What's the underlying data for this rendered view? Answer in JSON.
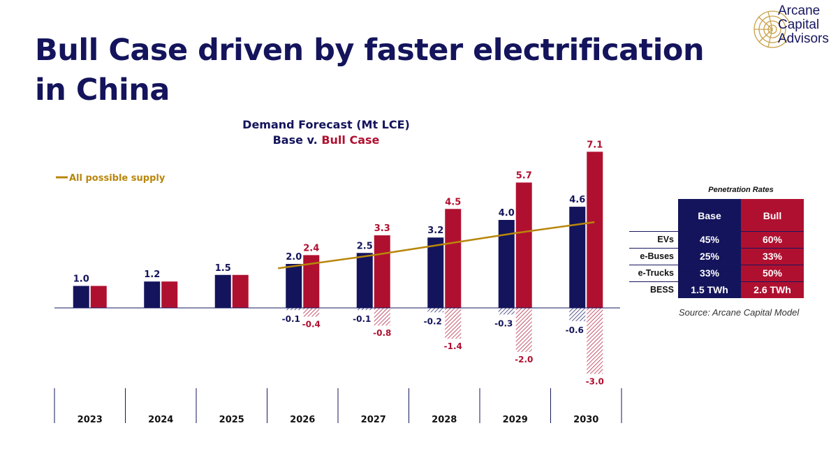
{
  "slide": {
    "title": "Bull Case driven by faster electrification in China",
    "logo": {
      "line1": "Arcane",
      "line2": "Capital",
      "line3": "Advisors",
      "icon": "nautilus-shell-icon"
    },
    "source": "Source: Arcane Capital Model"
  },
  "colors": {
    "base": "#14145c",
    "bull": "#b01030",
    "supply": "#b8860b",
    "text": "#16165e"
  },
  "chart_data": {
    "type": "bar",
    "title": "Demand Forecast (Mt LCE)",
    "subtitle_parts": [
      "Base v. ",
      "Bull Case"
    ],
    "categories": [
      "2023",
      "2024",
      "2025",
      "2026",
      "2027",
      "2028",
      "2029",
      "2030"
    ],
    "series": [
      {
        "name": "Base",
        "values": [
          1.0,
          1.2,
          1.5,
          2.0,
          2.5,
          3.2,
          4.0,
          4.6
        ],
        "labels": [
          "1.0",
          "1.2",
          "1.5",
          "2.0",
          "2.5",
          "3.2",
          "4.0",
          "4.6"
        ]
      },
      {
        "name": "Bull Case",
        "values": [
          1.0,
          1.2,
          1.5,
          2.4,
          3.3,
          4.5,
          5.7,
          7.1
        ],
        "labels": [
          "",
          "",
          "",
          "2.4",
          "3.3",
          "4.5",
          "5.7",
          "7.1"
        ]
      }
    ],
    "negative_series": [
      {
        "series": "Base",
        "values": [
          0,
          0,
          0,
          -0.1,
          -0.1,
          -0.2,
          -0.3,
          -0.6
        ],
        "labels": [
          "",
          "",
          "",
          "-0.1",
          "-0.1",
          "-0.2",
          "-0.3",
          "-0.6"
        ]
      },
      {
        "series": "Bull Case",
        "values": [
          0,
          0,
          0,
          -0.4,
          -0.8,
          -1.4,
          -2.0,
          -3.0
        ],
        "labels": [
          "",
          "",
          "",
          "-0.4",
          "-0.8",
          "-1.4",
          "-2.0",
          "-3.0"
        ]
      }
    ],
    "line": {
      "name": "All possible supply",
      "start_index": 3,
      "values": [
        null,
        null,
        null,
        1.8,
        2.4,
        2.9,
        3.4,
        3.9
      ]
    },
    "legend": "top-left",
    "grid": false
  },
  "penetration": {
    "title": "Penetration Rates",
    "columns": [
      "Base",
      "Bull"
    ],
    "rows": [
      {
        "label": "EVs",
        "base": "45%",
        "bull": "60%"
      },
      {
        "label": "e-Buses",
        "base": "25%",
        "bull": "33%"
      },
      {
        "label": "e-Trucks",
        "base": "33%",
        "bull": "50%"
      },
      {
        "label": "BESS",
        "base": "1.5 TWh",
        "bull": "2.6 TWh"
      }
    ]
  }
}
